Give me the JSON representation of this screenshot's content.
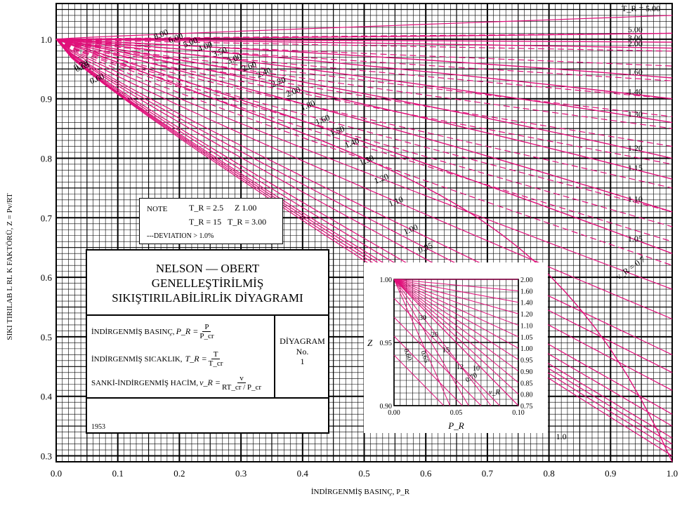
{
  "chart_data": {
    "type": "line",
    "title": "NELSON — OBERT GENELLEŞTİRİLMİŞ SIKIŞTIRILABİLİRLİK DİYAGRAMI",
    "xlabel": "İNDİRGENMİŞ BASINÇ, P_R",
    "ylabel": "SIKI TIRILAB L RL K FAKTÖRÜ, Z = Pv/RT",
    "xlim": [
      0.0,
      1.0
    ],
    "ylim": [
      0.29,
      1.06
    ],
    "xticks": [
      "0.0",
      "0.1",
      "0.2",
      "0.3",
      "0.4",
      "0.5",
      "0.6",
      "0.7",
      "0.8",
      "0.9",
      "1.0"
    ],
    "yticks": [
      "0.3",
      "0.4",
      "0.5",
      "0.6",
      "0.7",
      "0.8",
      "0.9",
      "1.0"
    ],
    "grid": true,
    "tr_label": "T_R = 5.00",
    "tr_curves": [
      {
        "label": "5.00",
        "z_at_1": 1.01
      },
      {
        "label": "3.00",
        "z_at_1": 0.995
      },
      {
        "label": "2.00",
        "z_at_1": 0.985
      },
      {
        "label": "1.60",
        "z_at_1": 0.935
      },
      {
        "label": "1.40",
        "z_at_1": 0.9
      },
      {
        "label": "1.30",
        "z_at_1": 0.86
      },
      {
        "label": "1.20",
        "z_at_1": 0.8
      },
      {
        "label": "1.15",
        "z_at_1": 0.765
      },
      {
        "label": "1.10",
        "z_at_1": 0.71
      },
      {
        "label": "1.05",
        "z_at_1": 0.64
      },
      {
        "label": "1.0",
        "z_at_1": 0.29
      }
    ],
    "vr_curves": [
      {
        "label": "8.00",
        "z_at_1": 1.04
      },
      {
        "label": "6.00",
        "z_at_1": 1.01
      },
      {
        "label": "5.00",
        "z_at_1": 0.98
      },
      {
        "label": "4.00",
        "z_at_1": 0.955
      },
      {
        "label": "3.50",
        "z_at_1": 0.93
      },
      {
        "label": "3.00",
        "z_at_1": 0.9
      },
      {
        "label": "2.60",
        "z_at_1": 0.87
      },
      {
        "label": "2.40",
        "z_at_1": 0.85
      },
      {
        "label": "2.20",
        "z_at_1": 0.82
      },
      {
        "label": "2.00",
        "z_at_1": 0.79
      },
      {
        "label": "1.80",
        "z_at_1": 0.75
      },
      {
        "label": "1.60",
        "z_at_1": 0.71
      },
      {
        "label": "1.50",
        "z_at_1": 0.685
      },
      {
        "label": "1.40",
        "z_at_1": 0.66
      },
      {
        "label": "1.30",
        "z_at_1": 0.62
      },
      {
        "label": "1.20",
        "z_at_1": 0.58
      },
      {
        "label": "1.10",
        "z_at_1": 0.53
      },
      {
        "label": "1.00",
        "z_at_1": 0.47
      },
      {
        "label": "0.95",
        "z_at_1": 0.44
      },
      {
        "label": "0.90",
        "z_at_1": 0.41
      },
      {
        "label": "0.85",
        "z_at_1": 0.37
      },
      {
        "label": "0.80",
        "z_at_1": 0.35
      },
      {
        "label": "0.75",
        "z_at_1": 0.33
      },
      {
        "label": "0.70",
        "z_at_1": 0.32
      },
      {
        "label": "0.65",
        "z_at_1": 0.31
      },
      {
        "label": "0.60",
        "z_at_1": 0.3
      }
    ],
    "vr_label": "v_R = 0.7",
    "inset": {
      "xlabel": "P_R",
      "ylabel": "Z",
      "xlim": [
        0.0,
        0.1
      ],
      "ylim": [
        0.9,
        1.0
      ],
      "xticks": [
        "0.00",
        "0.05",
        "0.10"
      ],
      "yticks_left": [
        "0.90",
        "0.95",
        "1.00"
      ],
      "right_tr_labels": [
        "2.00",
        "1.60",
        "1.40",
        "1.20",
        "1.10",
        "1.05",
        "1.00",
        "0.95",
        "0.90",
        "0.85",
        "0.80",
        "0.75"
      ],
      "vr_labels": [
        "30",
        "20",
        "15",
        "12",
        "10"
      ],
      "low_tr_labels": [
        "0.60",
        "0.65",
        "0.70"
      ],
      "vr_name": "v_R"
    }
  },
  "note": {
    "word": "NOTE",
    "line1_lhs": "T_R = 2.5",
    "line1_rhs": "Z  1.00",
    "line2_lhs": "T_R = 15",
    "line2_rhs": "T_R = 3.00",
    "line3": "---DEVIATION > 1.0%"
  },
  "titleblock": {
    "line1": "NELSON — OBERT",
    "line2": "GENELLEŞTİRİLMİŞ",
    "line3": "SIKIŞTIRILABİLİRLİK DİYAGRAMI",
    "def1": "İNDİRGENMİŞ BASINÇ,",
    "def1_lhs": "P_R =",
    "def1_num": "P",
    "def1_den": "P_cr",
    "def2": "İNDİRGENMİŞ  SICAKLIK,",
    "def2_lhs": "T_R =",
    "def2_num": "T",
    "def2_den": "T_cr",
    "def3": "SANKİ-İNDİRGENMİŞ HACİM,",
    "def3_lhs": "v_R =",
    "def3_num": "v",
    "def3_den": "RT_cr / P_cr",
    "diagram": "DİYAGRAM",
    "no": "No.",
    "num": "1",
    "year": "1953"
  },
  "colors": {
    "curve": "#e0107a",
    "grid": "#000000"
  }
}
